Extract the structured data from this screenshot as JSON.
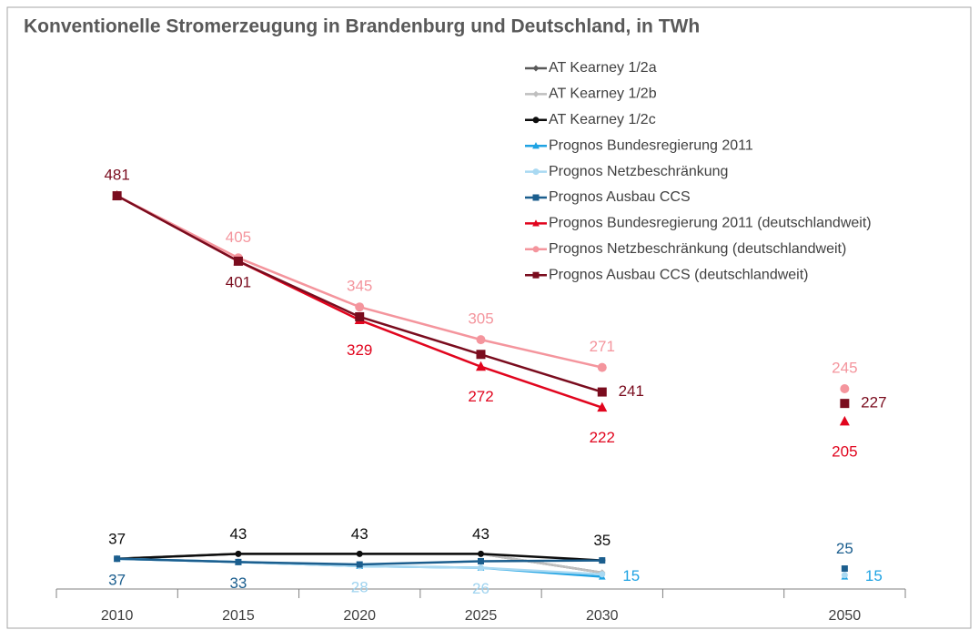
{
  "chart_data": {
    "type": "line",
    "title": "Konventionelle Stromerzeugung in Brandenburg und Deutschland, in TWh",
    "categories": [
      "2010",
      "2015",
      "2020",
      "2025",
      "2030",
      null,
      "2050"
    ],
    "ylim": [
      0,
      500
    ],
    "series": [
      {
        "name": "AT Kearney 1/2a",
        "color": "#595959",
        "marker": "diamond",
        "values": [
          37,
          43,
          43,
          43,
          20,
          null,
          null
        ]
      },
      {
        "name": "AT Kearney 1/2b",
        "color": "#bfbfbf",
        "marker": "diamond",
        "values": [
          37,
          43,
          43,
          43,
          20,
          null,
          null
        ]
      },
      {
        "name": "AT Kearney 1/2c",
        "color": "#0d0d0d",
        "marker": "circle",
        "values": [
          37,
          43,
          43,
          43,
          35,
          null,
          null
        ],
        "value_labels": [
          "37",
          "43",
          "43",
          "43",
          "35",
          null,
          null
        ]
      },
      {
        "name": "Prognos Bundesregierung 2011",
        "color": "#1fa3e3",
        "marker": "triangle",
        "values": [
          37,
          33,
          28,
          26,
          15,
          null,
          15
        ],
        "value_labels": [
          null,
          null,
          null,
          null,
          "15",
          null,
          "15"
        ]
      },
      {
        "name": "Prognos Netzbeschränkung",
        "color": "#a9d9f2",
        "marker": "circle",
        "values": [
          37,
          33,
          28,
          26,
          18,
          null,
          17
        ],
        "value_labels": [
          null,
          null,
          "28",
          "26",
          null,
          null,
          null
        ]
      },
      {
        "name": "Prognos Ausbau CCS",
        "color": "#1b5e8e",
        "marker": "square",
        "values": [
          37,
          33,
          30,
          34,
          35,
          null,
          25
        ],
        "value_labels": [
          "37",
          "33",
          null,
          null,
          null,
          null,
          "25"
        ]
      },
      {
        "name": "Prognos Bundesregierung 2011 (deutschlandweit)",
        "color": "#e1051e",
        "marker": "triangle",
        "values": [
          481,
          401,
          329,
          272,
          222,
          null,
          205
        ],
        "value_labels": [
          null,
          null,
          "329",
          "272",
          "222",
          null,
          "205"
        ]
      },
      {
        "name": "Prognos Netzbeschränkung (deutschlandweit)",
        "color": "#f4959d",
        "marker": "circle",
        "values": [
          481,
          405,
          345,
          305,
          271,
          null,
          245
        ],
        "value_labels": [
          null,
          "405",
          "345",
          "305",
          "271",
          null,
          "245"
        ]
      },
      {
        "name": "Prognos Ausbau CCS (deutschlandweit)",
        "color": "#7a0c1e",
        "marker": "square",
        "values": [
          481,
          401,
          333,
          287,
          241,
          null,
          227
        ],
        "value_labels": [
          "481",
          "401",
          null,
          null,
          "241",
          null,
          "227"
        ]
      }
    ]
  }
}
